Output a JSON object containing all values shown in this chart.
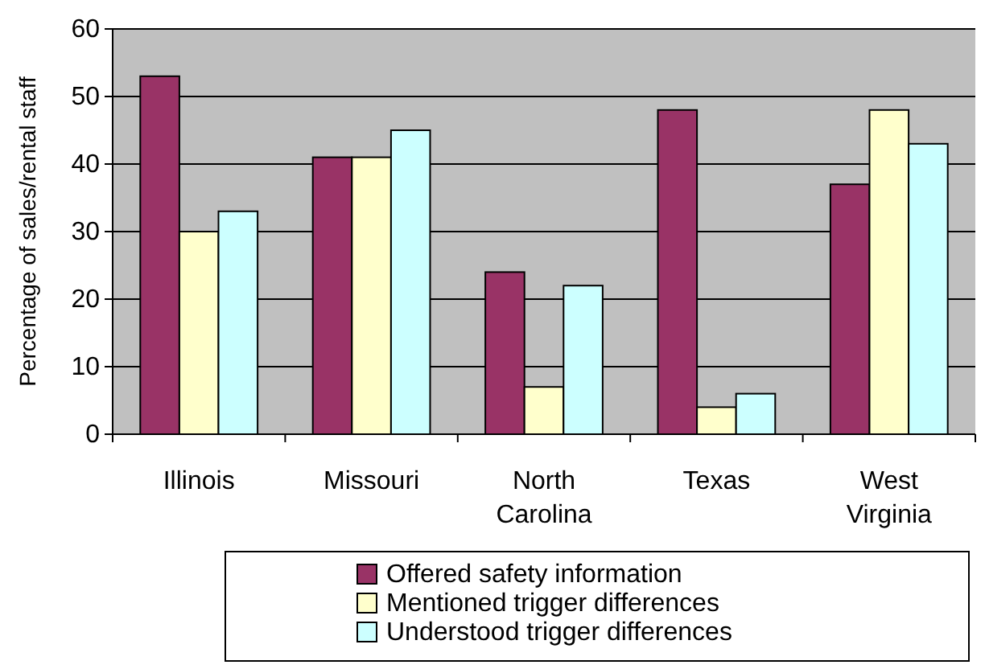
{
  "chart_data": {
    "type": "bar",
    "ylabel": "Percentage of sales/rental staff",
    "categories": [
      "Illinois",
      "Missouri",
      "North Carolina",
      "Texas",
      "West Virginia"
    ],
    "series": [
      {
        "name": "Offered safety information",
        "color": "#993366",
        "values": [
          53,
          41,
          24,
          48,
          37
        ]
      },
      {
        "name": "Mentioned trigger differences",
        "color": "#ffffcc",
        "values": [
          30,
          41,
          7,
          4,
          48
        ]
      },
      {
        "name": "Understood trigger differences",
        "color": "#ccffff",
        "values": [
          33,
          45,
          22,
          6,
          43
        ]
      }
    ],
    "ylim": [
      0,
      60
    ],
    "yticks": [
      0,
      10,
      20,
      30,
      40,
      50,
      60
    ],
    "grid": "y",
    "legend": "bottom"
  }
}
